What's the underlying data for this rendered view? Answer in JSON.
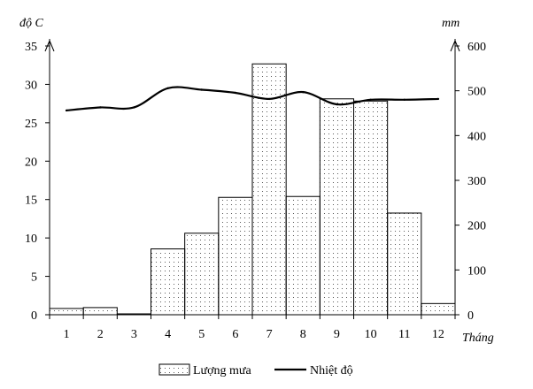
{
  "chart_data": {
    "type": "bar+line",
    "categories": [
      "1",
      "2",
      "3",
      "4",
      "5",
      "6",
      "7",
      "8",
      "9",
      "10",
      "11",
      "12"
    ],
    "xlabel": "Tháng",
    "left_axis": {
      "label": "độ C",
      "range": [
        0,
        35
      ],
      "ticks": [
        0,
        5,
        10,
        15,
        20,
        25,
        30,
        35
      ]
    },
    "right_axis": {
      "label": "mm",
      "range": [
        0,
        600
      ],
      "ticks": [
        0,
        100,
        200,
        300,
        400,
        500,
        600
      ]
    },
    "series": [
      {
        "name": "Lượng mưa",
        "kind": "bar",
        "axis": "right",
        "values": [
          14,
          16,
          2,
          147,
          182,
          262,
          560,
          264,
          482,
          477,
          227,
          25
        ]
      },
      {
        "name": "Nhiệt độ",
        "kind": "line",
        "axis": "left",
        "values": [
          26.6,
          27.0,
          27.0,
          29.5,
          29.3,
          28.9,
          28.1,
          29.0,
          27.4,
          28.0,
          28.0,
          28.1
        ]
      }
    ],
    "grid": false,
    "legend_position": "bottom"
  }
}
